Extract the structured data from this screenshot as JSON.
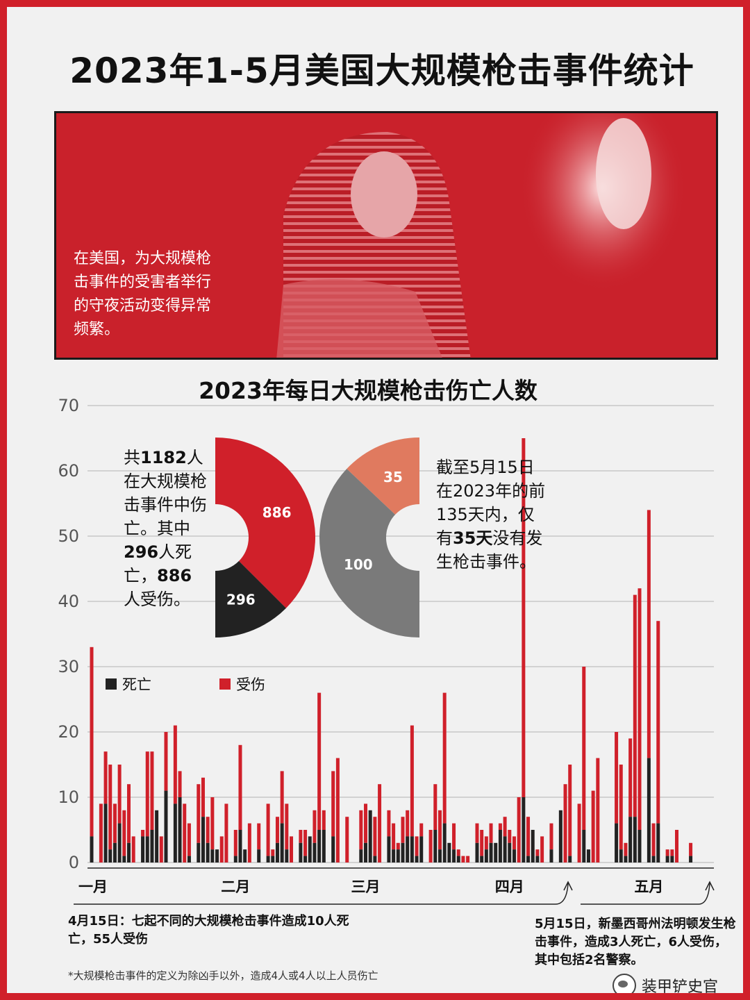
{
  "page": {
    "title": "2023年1-5月美国大规模枪击事件统计",
    "photo_caption": "在美国，为大规模枪击事件的受害者举行的守夜活动变得异常频繁。",
    "chart_title": "2023年每日大规模枪击伤亡人数",
    "footnote": "*大规模枪击事件的定义为除凶手以外，造成4人或4人以上人员伤亡",
    "watermark": "装甲铲史官"
  },
  "colors": {
    "frame": "#d0202a",
    "injured": "#d0202a",
    "killed": "#222222",
    "no_event_days": "#e07a5f",
    "event_days": "#7a7a7a"
  },
  "donut_left": {
    "text_parts": [
      "共",
      "1182",
      "人在大规模枪击事件中伤亡。其中",
      "296",
      "人死亡，",
      "886",
      "人受伤。"
    ],
    "slices": [
      {
        "label": "886",
        "value": 886,
        "color": "#d0202a"
      },
      {
        "label": "296",
        "value": 296,
        "color": "#222222"
      }
    ]
  },
  "donut_right": {
    "text_parts": [
      "截至5月15日在2023年的前135天内，仅有",
      "35天",
      "没有发生枪击事件。"
    ],
    "slices": [
      {
        "label": "35",
        "value": 35,
        "color": "#e07a5f"
      },
      {
        "label": "100",
        "value": 100,
        "color": "#7a7a7a"
      }
    ]
  },
  "legend": {
    "killed": "死亡",
    "injured": "受伤"
  },
  "annotations": {
    "apr15": "4月15日：七起不同的大规模枪击事件造成10人死亡，55人受伤",
    "may15": "5月15日，新墨西哥州法明顿发生枪击事件，造成3人死亡，6人受伤，其中包括2名警察。"
  },
  "chart_data": {
    "type": "bar",
    "title": "2023年每日大规模枪击伤亡人数",
    "stacked": true,
    "ylim": [
      0,
      70
    ],
    "yticks": [
      0,
      10,
      20,
      30,
      40,
      50,
      60,
      70
    ],
    "x_month_labels": [
      {
        "label": "一月",
        "day": 1
      },
      {
        "label": "二月",
        "day": 32
      },
      {
        "label": "三月",
        "day": 60
      },
      {
        "label": "四月",
        "day": 91
      },
      {
        "label": "五月",
        "day": 121
      }
    ],
    "x": [
      1,
      3,
      4,
      5,
      6,
      7,
      8,
      9,
      10,
      12,
      13,
      14,
      15,
      16,
      17,
      19,
      20,
      21,
      22,
      24,
      25,
      26,
      27,
      28,
      29,
      30,
      32,
      33,
      34,
      35,
      37,
      39,
      40,
      41,
      42,
      43,
      44,
      46,
      47,
      48,
      49,
      50,
      51,
      52,
      53,
      54,
      56,
      59,
      60,
      61,
      62,
      63,
      65,
      66,
      67,
      68,
      69,
      70,
      71,
      72,
      74,
      75,
      76,
      77,
      78,
      79,
      80,
      81,
      82,
      84,
      85,
      86,
      87,
      88,
      89,
      90,
      91,
      92,
      93,
      94,
      95,
      96,
      97,
      98,
      99,
      100,
      102,
      103,
      104,
      106,
      107,
      108,
      109,
      110,
      114,
      115,
      116,
      117,
      118,
      119,
      121,
      122,
      123,
      125,
      126,
      127,
      128,
      129,
      130,
      131
    ],
    "series": [
      {
        "name": "死亡",
        "values": [
          4,
          0,
          9,
          2,
          3,
          6,
          1,
          3,
          0,
          4,
          4,
          5,
          8,
          0,
          11,
          9,
          10,
          0,
          1,
          3,
          7,
          3,
          2,
          2,
          0,
          0,
          1,
          5,
          2,
          0,
          2,
          1,
          1,
          3,
          6,
          2,
          0,
          3,
          1,
          4,
          3,
          5,
          5,
          0,
          4,
          0,
          0,
          2,
          3,
          8,
          1,
          0,
          4,
          2,
          2,
          3,
          4,
          4,
          1,
          4,
          0,
          5,
          2,
          6,
          3,
          2,
          1,
          0,
          0,
          3,
          1,
          2,
          3,
          3,
          5,
          4,
          3,
          2,
          0,
          10,
          1,
          5,
          1,
          0,
          0,
          2,
          8,
          0,
          1,
          0,
          5,
          2,
          0,
          0,
          6,
          2,
          1,
          7,
          7,
          5,
          16,
          1,
          6,
          1,
          1,
          0,
          0,
          0,
          1,
          0
        ]
      },
      {
        "name": "受伤",
        "values": [
          29,
          9,
          8,
          13,
          6,
          9,
          7,
          9,
          4,
          1,
          13,
          12,
          0,
          4,
          9,
          12,
          4,
          9,
          5,
          9,
          6,
          4,
          8,
          0,
          4,
          9,
          4,
          13,
          0,
          6,
          4,
          8,
          1,
          4,
          8,
          7,
          4,
          2,
          4,
          0,
          5,
          21,
          3,
          0,
          10,
          16,
          7,
          6,
          6,
          0,
          6,
          12,
          4,
          4,
          1,
          4,
          4,
          17,
          3,
          2,
          5,
          7,
          6,
          20,
          0,
          4,
          1,
          1,
          1,
          3,
          4,
          2,
          3,
          0,
          1,
          3,
          2,
          2,
          10,
          55,
          6,
          0,
          1,
          4,
          0,
          4,
          0,
          12,
          14,
          9,
          25,
          0,
          11,
          16,
          14,
          13,
          2,
          12,
          34,
          37,
          38,
          5,
          31,
          1,
          1,
          5,
          0,
          0,
          2,
          0
        ]
      }
    ]
  }
}
